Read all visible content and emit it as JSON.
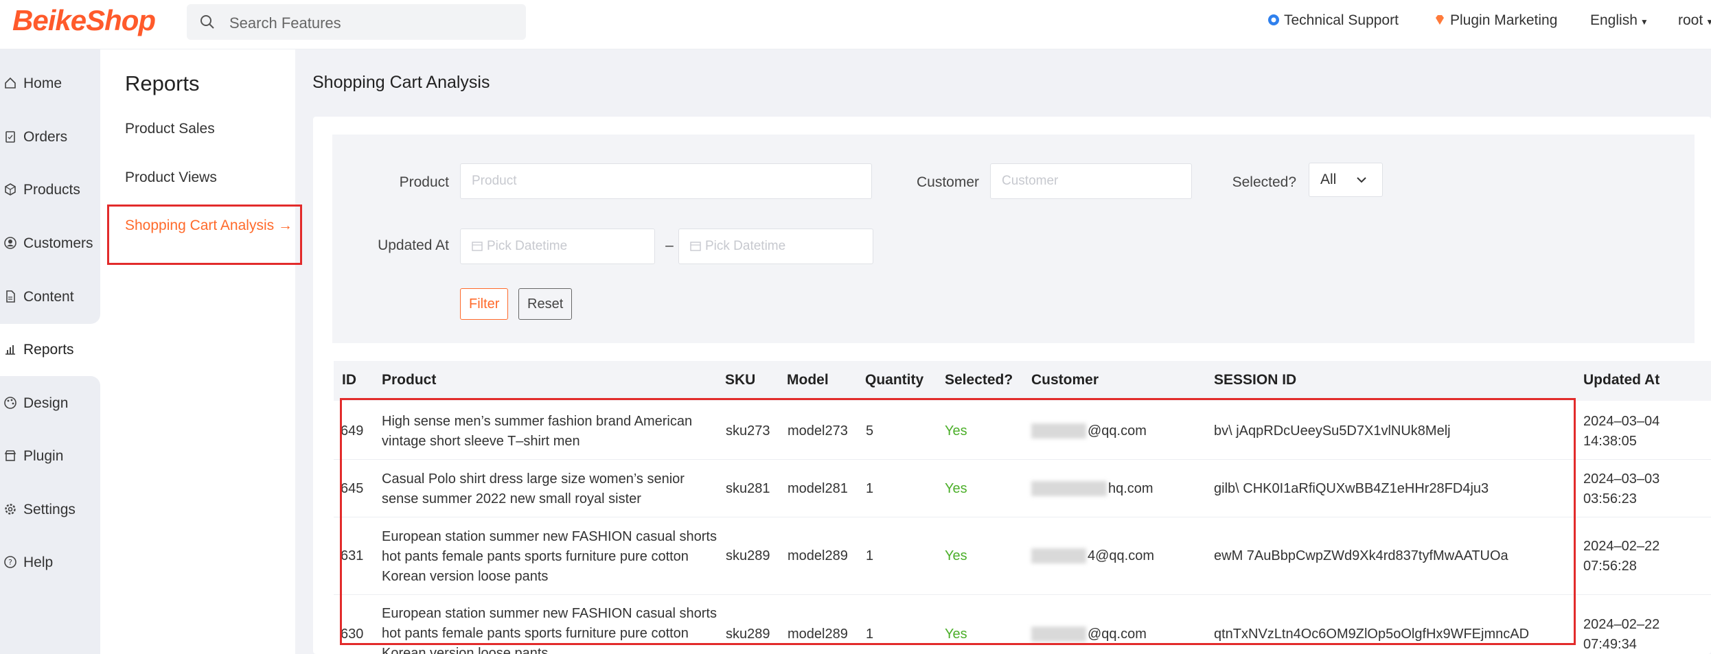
{
  "header": {
    "logo": "BeikeShop",
    "search_placeholder": "Search Features",
    "links": [
      "Technical Support",
      "Plugin Marketing",
      "English",
      "root"
    ]
  },
  "nav": [
    "Home",
    "Orders",
    "Products",
    "Customers",
    "Content",
    "Reports",
    "Design",
    "Plugin",
    "Settings",
    "Help"
  ],
  "subnav": {
    "title": "Reports",
    "items": [
      "Product Sales",
      "Product Views",
      "Shopping Cart Analysis →"
    ]
  },
  "page_title": "Shopping Cart Analysis",
  "filter": {
    "product_label": "Product",
    "product_placeholder": "Product",
    "customer_label": "Customer",
    "customer_placeholder": "Customer",
    "selected_label": "Selected?",
    "selected_value": "All",
    "updated_label": "Updated At",
    "date_placeholder": "Pick Datetime",
    "range_sep": "–",
    "filter_btn": "Filter",
    "reset_btn": "Reset"
  },
  "table": {
    "headers": [
      "ID",
      "Product",
      "SKU",
      "Model",
      "Quantity",
      "Selected?",
      "Customer",
      "SESSION ID",
      "Updated At"
    ],
    "rows": [
      {
        "id": "649",
        "product": "High sense men’s summer fashion brand American vintage short sleeve T–shirt men",
        "sku": "sku273",
        "model": "model273",
        "qty": "5",
        "selected": "Yes",
        "customer": "@qq.com",
        "session": "bv\\  jAqpRDcUeeySu5D7X1vlNUk8Melj",
        "updated": "2024–03–04 14:38:05"
      },
      {
        "id": "645",
        "product": "Casual Polo shirt dress large size women’s senior sense summer 2022 new small royal sister",
        "sku": "sku281",
        "model": "model281",
        "qty": "1",
        "selected": "Yes",
        "customer": "hq.com",
        "session": "gilb\\  CHK0I1aRfiQUXwBB4Z1eHHr28FD4ju3",
        "updated": "2024–03–03 03:56:23"
      },
      {
        "id": "631",
        "product": "European station summer new FASHION casual shorts hot pants female pants sports furniture pure cotton Korean version loose pants",
        "sku": "sku289",
        "model": "model289",
        "qty": "1",
        "selected": "Yes",
        "customer": "4@qq.com",
        "session": "ewM  7AuBbpCwpZWd9Xk4rd837tyfMwAATUOa",
        "updated": "2024–02–22 07:56:28"
      },
      {
        "id": "630",
        "product": "European station summer new FASHION casual shorts hot pants female pants sports furniture pure cotton Korean version loose pants",
        "sku": "sku289",
        "model": "model289",
        "qty": "1",
        "selected": "Yes",
        "customer": "@qq.com",
        "session": "qtnTxNVzLtn4Oc6OM9ZlOp5oOlgfHx9WFEjmncAD",
        "updated": "2024–02–22 07:49:34"
      }
    ]
  }
}
